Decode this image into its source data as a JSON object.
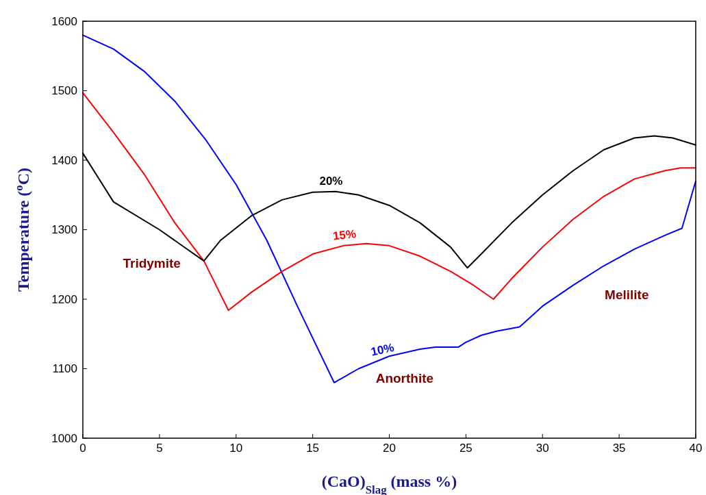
{
  "chart_data": {
    "type": "line",
    "xlabel": "(CaO)$_{Slag}$ (mass %)",
    "ylabel": "Temperature ($^{o}$C)",
    "xlim": [
      0,
      40
    ],
    "xticks": [
      0,
      5,
      10,
      15,
      20,
      25,
      30,
      35,
      40
    ],
    "ylim": [
      1000,
      1600
    ],
    "yticks": [
      1000,
      1100,
      1200,
      1300,
      1400,
      1500,
      1600
    ],
    "grid": false,
    "marker": "none",
    "line_style": "solid",
    "series": [
      {
        "name": "10%",
        "color": "#0000ff",
        "x": [
          0,
          2,
          4,
          6,
          8,
          10,
          12,
          14,
          16.4,
          18,
          20,
          22,
          23,
          24.5,
          25,
          26,
          27,
          28.5,
          30,
          32,
          34,
          36,
          38,
          39.1,
          40
        ],
        "values": [
          1580,
          1560,
          1528,
          1485,
          1430,
          1365,
          1285,
          1190,
          1080,
          1100,
          1118,
          1128,
          1131,
          1131,
          1138,
          1148,
          1154,
          1160,
          1190,
          1220,
          1248,
          1272,
          1292,
          1302,
          1370
        ]
      },
      {
        "name": "15%",
        "color": "#ff0000",
        "x": [
          0,
          2,
          4,
          6,
          7.9,
          9.5,
          11,
          13,
          15,
          17,
          18.5,
          20,
          22,
          24,
          25.5,
          26.8,
          28,
          30,
          32,
          34,
          36,
          38,
          39,
          40
        ],
        "values": [
          1497,
          1440,
          1380,
          1310,
          1255,
          1184,
          1210,
          1240,
          1265,
          1277,
          1280,
          1277,
          1262,
          1240,
          1220,
          1200,
          1230,
          1275,
          1315,
          1348,
          1373,
          1385,
          1389,
          1389
        ]
      },
      {
        "name": "20%",
        "color": "#000000",
        "x": [
          0,
          2,
          5,
          7.9,
          9,
          11,
          13,
          15,
          16.5,
          18,
          20,
          22,
          24,
          25.1,
          26,
          28,
          30,
          32,
          34,
          36,
          37.3,
          38.5,
          40
        ],
        "values": [
          1410,
          1340,
          1300,
          1255,
          1285,
          1320,
          1343,
          1354,
          1355,
          1350,
          1335,
          1310,
          1275,
          1245,
          1265,
          1310,
          1350,
          1385,
          1415,
          1432,
          1435,
          1432,
          1422
        ]
      }
    ],
    "annotations": [
      "Tridymite",
      "Anorthite",
      "Melilite"
    ]
  }
}
